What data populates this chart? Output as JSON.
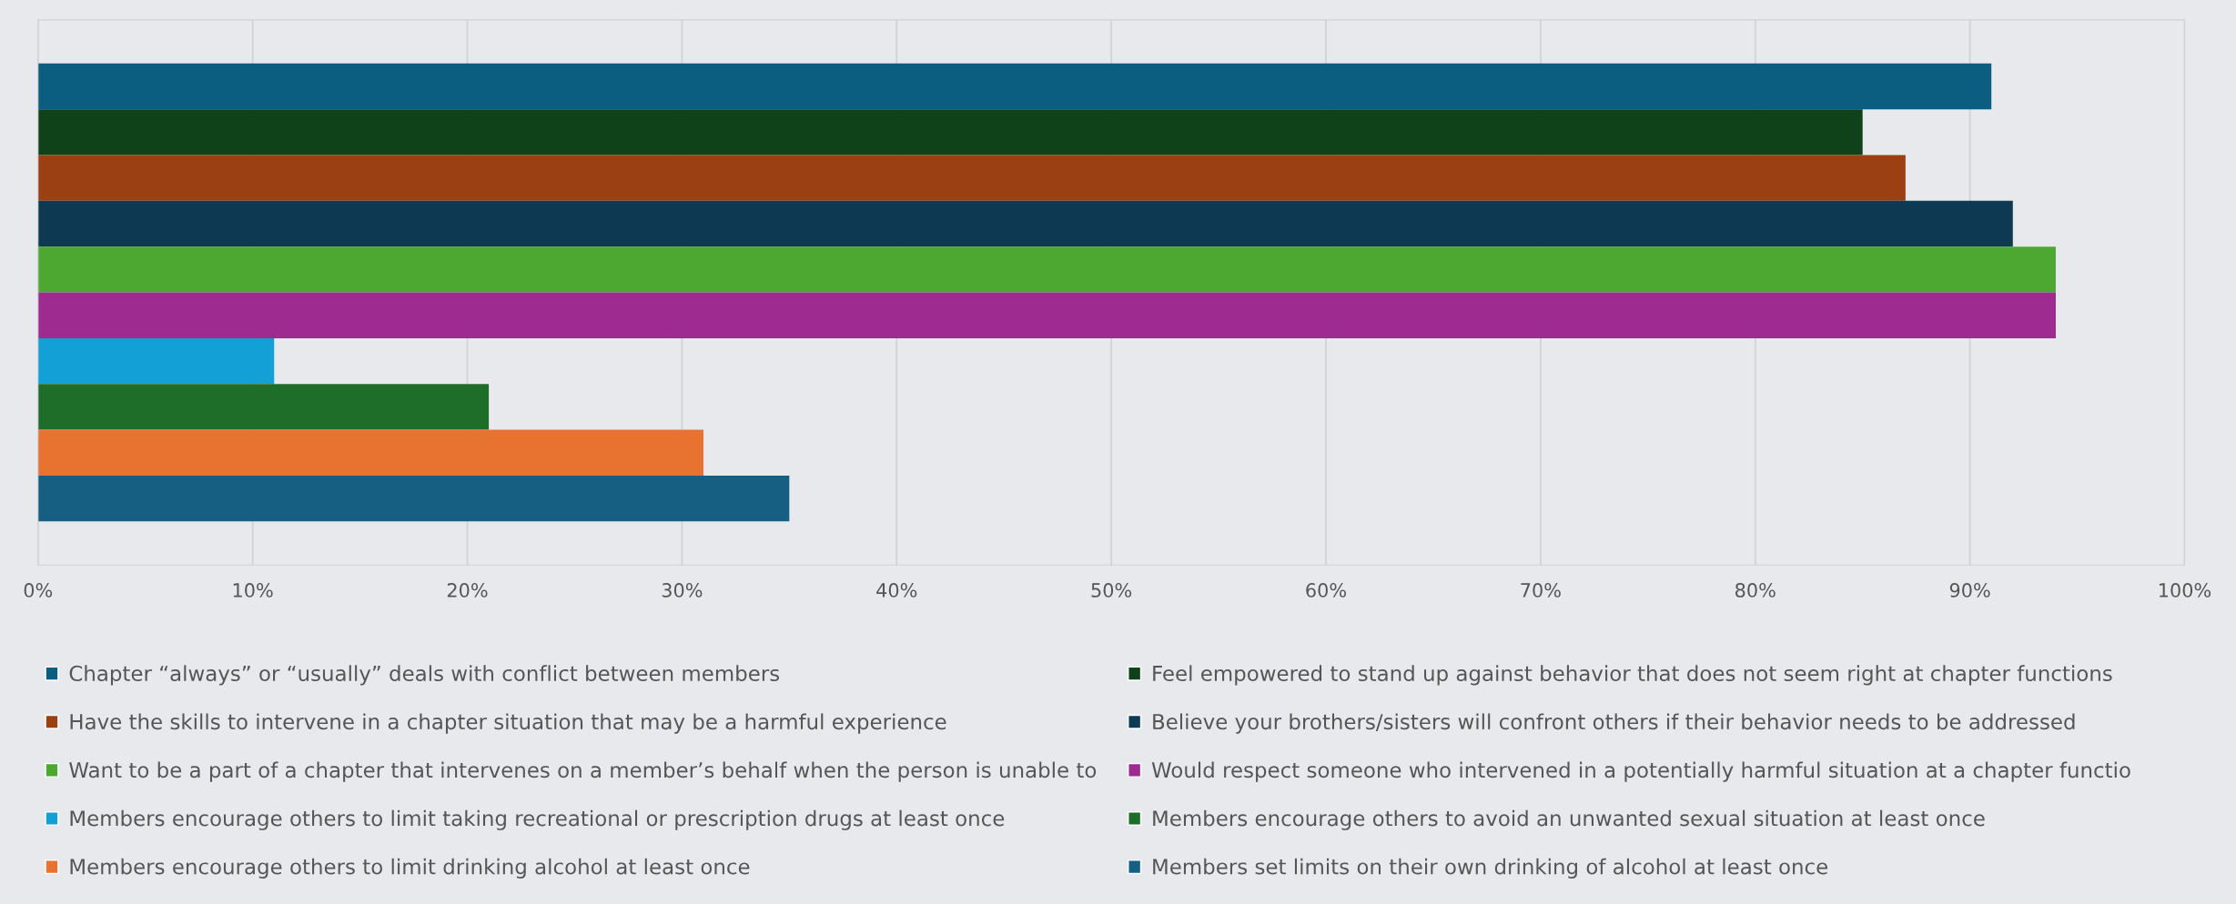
{
  "chart_data": {
    "type": "bar",
    "orientation": "horizontal",
    "categories": [
      null
    ],
    "series": [
      {
        "name": "Chapter “always” or “usually” deals with conflict between members",
        "color": "#0b5e80",
        "values": [
          91
        ]
      },
      {
        "name": "Feel empowered to stand up against behavior that does not seem right at chapter functions",
        "color": "#10421a",
        "values": [
          85
        ]
      },
      {
        "name": "Have the skills to intervene in a chapter situation that may be a harmful experience",
        "color": "#9a4013",
        "values": [
          87
        ]
      },
      {
        "name": "Believe your brothers/sisters will confront others if their behavior needs to be addressed",
        "color": "#0d3a52",
        "values": [
          92
        ]
      },
      {
        "name": "Want to be a part of a chapter that intervenes on a member’s behalf when the person is unable to",
        "color": "#4da832",
        "values": [
          94
        ]
      },
      {
        "name": "Would respect someone who intervened in a potentially harmful situation at a chapter functio",
        "color": "#9e2b90",
        "values": [
          94
        ]
      },
      {
        "name": "Members encourage others to limit taking recreational or prescription drugs at least once",
        "color": "#12a0d6",
        "values": [
          11
        ]
      },
      {
        "name": "Members encourage others to avoid an unwanted sexual situation at least once",
        "color": "#1e6e2a",
        "values": [
          21
        ]
      },
      {
        "name": "Members encourage others to limit drinking alcohol at least once",
        "color": "#e87230",
        "values": [
          31
        ]
      },
      {
        "name": "Members set limits on their own drinking of alcohol at least once",
        "color": "#165f82",
        "values": [
          35
        ]
      }
    ],
    "xlim": [
      0,
      100
    ],
    "xticks": [
      {
        "value": 0,
        "label": "0%"
      },
      {
        "value": 10,
        "label": "10%"
      },
      {
        "value": 20,
        "label": "20%"
      },
      {
        "value": 30,
        "label": "30%"
      },
      {
        "value": 40,
        "label": "40%"
      },
      {
        "value": 50,
        "label": "50%"
      },
      {
        "value": 60,
        "label": "60%"
      },
      {
        "value": 70,
        "label": "70%"
      },
      {
        "value": 80,
        "label": "80%"
      },
      {
        "value": 90,
        "label": "90%"
      },
      {
        "value": 100,
        "label": "100%"
      }
    ],
    "grid": "x",
    "legend": "bottom",
    "tick_labels": "x"
  }
}
